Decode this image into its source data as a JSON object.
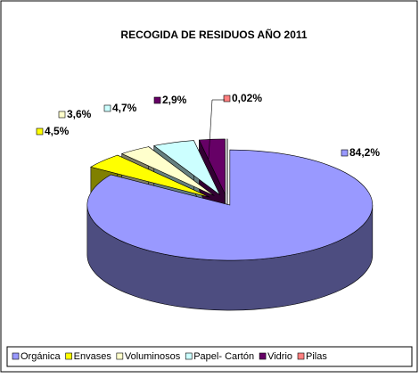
{
  "chart_data": {
    "type": "pie3d",
    "title": "RECOGIDA DE RESIDUOS AÑO 2011",
    "categories": [
      "Orgánica",
      "Envases",
      "Voluminosos",
      "Papel- Cartón",
      "Vidrio",
      "Pilas"
    ],
    "values": [
      84.2,
      4.5,
      3.6,
      4.7,
      2.9,
      0.02
    ],
    "value_labels": [
      "84,2%",
      "4,5%",
      "3,6%",
      "4,7%",
      "2,9%",
      "0,02%"
    ],
    "colors": [
      "#9999ff",
      "#ffff00",
      "#ffffcc",
      "#ccffff",
      "#660066",
      "#ff8080"
    ],
    "legend": "bottom"
  }
}
